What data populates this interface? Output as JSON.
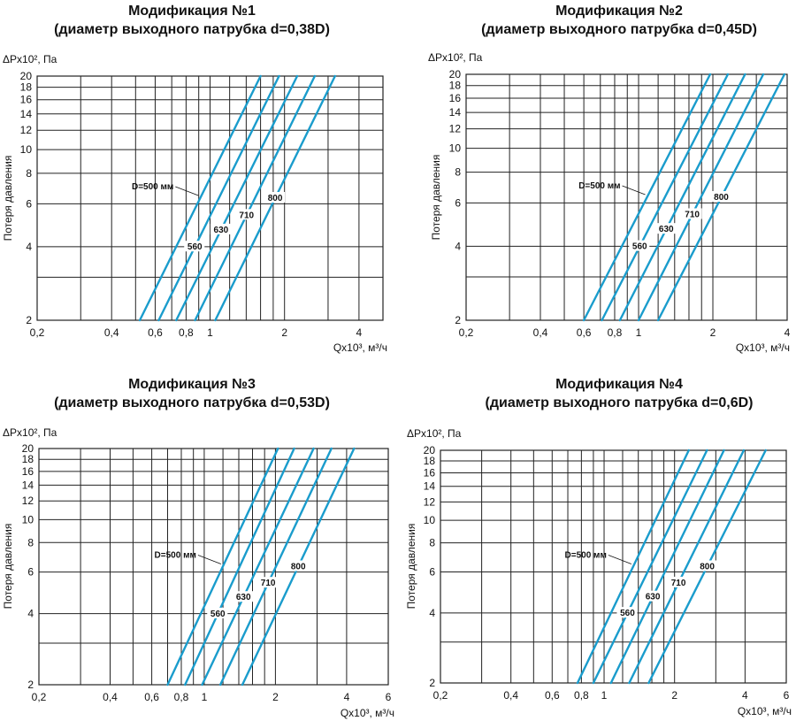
{
  "chart_data": [
    {
      "type": "line",
      "title": "Модификация №1",
      "subtitle": "(диаметр выходного патрубка d=0,38D)",
      "ylabel": "Потеря давления",
      "y_unit": "ΔPx10², Па",
      "x_unit": "Qx10³, м³/ч",
      "x_scale": "log",
      "y_scale": "log",
      "xlim": [
        0.2,
        5
      ],
      "ylim": [
        2,
        20
      ],
      "xticks": [
        0.2,
        0.4,
        0.6,
        0.8,
        1,
        2,
        4
      ],
      "xtick_labels": [
        "0,2",
        "0,4",
        "0,6",
        "0,8",
        "1",
        "2",
        "4"
      ],
      "yticks": [
        2,
        4,
        6,
        8,
        10,
        12,
        14,
        16,
        18,
        20
      ],
      "ytick_labels": [
        "2",
        "4",
        "6",
        "8",
        "10",
        "12",
        "14",
        "16",
        "18",
        "20"
      ],
      "series": [
        {
          "name": "D=500 мм",
          "x": [
            0.52,
            1.6
          ],
          "y": [
            2,
            20
          ]
        },
        {
          "name": "560",
          "x": [
            0.62,
            1.9
          ],
          "y": [
            2,
            20
          ]
        },
        {
          "name": "630",
          "x": [
            0.73,
            2.25
          ],
          "y": [
            2,
            20
          ]
        },
        {
          "name": "710",
          "x": [
            0.87,
            2.65
          ],
          "y": [
            2,
            20
          ]
        },
        {
          "name": "800",
          "x": [
            1.05,
            3.2
          ],
          "y": [
            2,
            20
          ]
        }
      ]
    },
    {
      "type": "line",
      "title": "Модификация №2",
      "subtitle": "(диаметр выходного патрубка d=0,45D)",
      "ylabel": "Потеря давления",
      "y_unit": "ΔPx10², Па",
      "x_unit": "Qx10³, м³/ч",
      "x_scale": "log",
      "y_scale": "log",
      "xlim": [
        0.2,
        4
      ],
      "ylim": [
        2,
        20
      ],
      "xticks": [
        0.2,
        0.4,
        0.6,
        0.8,
        1,
        2,
        4
      ],
      "xtick_labels": [
        "0,2",
        "0,4",
        "0,6",
        "0,8",
        "1",
        "2",
        "4"
      ],
      "yticks": [
        2,
        4,
        6,
        8,
        10,
        12,
        14,
        16,
        18,
        20
      ],
      "ytick_labels": [
        "2",
        "4",
        "6",
        "8",
        "10",
        "12",
        "14",
        "16",
        "18",
        "20"
      ],
      "series": [
        {
          "name": "D=500 мм",
          "x": [
            0.6,
            1.95
          ],
          "y": [
            2,
            20
          ]
        },
        {
          "name": "560",
          "x": [
            0.71,
            2.3
          ],
          "y": [
            2,
            20
          ]
        },
        {
          "name": "630",
          "x": [
            0.84,
            2.7
          ],
          "y": [
            2,
            20
          ]
        },
        {
          "name": "710",
          "x": [
            1.0,
            3.2
          ],
          "y": [
            2,
            20
          ]
        },
        {
          "name": "800",
          "x": [
            1.2,
            3.9
          ],
          "y": [
            2,
            20
          ]
        }
      ]
    },
    {
      "type": "line",
      "title": "Модификация №3",
      "subtitle": "(диаметр выходного патрубка d=0,53D)",
      "ylabel": "Потеря давления",
      "y_unit": "ΔPx10², Па",
      "x_unit": "Qx10³, м³/ч",
      "x_scale": "log",
      "y_scale": "log",
      "xlim": [
        0.2,
        6
      ],
      "ylim": [
        2,
        20
      ],
      "xticks": [
        0.2,
        0.4,
        0.6,
        0.8,
        1,
        2,
        4,
        6
      ],
      "xtick_labels": [
        "0,2",
        "0,4",
        "0,6",
        "0,8",
        "1",
        "2",
        "4",
        "6"
      ],
      "yticks": [
        2,
        4,
        6,
        8,
        10,
        12,
        14,
        16,
        18,
        20
      ],
      "ytick_labels": [
        "2",
        "4",
        "6",
        "8",
        "10",
        "12",
        "14",
        "16",
        "18",
        "20"
      ],
      "series": [
        {
          "name": "D=500 мм",
          "x": [
            0.7,
            2.05
          ],
          "y": [
            2,
            20
          ]
        },
        {
          "name": "560",
          "x": [
            0.83,
            2.4
          ],
          "y": [
            2,
            20
          ]
        },
        {
          "name": "630",
          "x": [
            0.98,
            2.9
          ],
          "y": [
            2,
            20
          ]
        },
        {
          "name": "710",
          "x": [
            1.17,
            3.45
          ],
          "y": [
            2,
            20
          ]
        },
        {
          "name": "800",
          "x": [
            1.45,
            4.3
          ],
          "y": [
            2,
            20
          ]
        }
      ]
    },
    {
      "type": "line",
      "title": "Модификация №4",
      "subtitle": "(диаметр выходного патрубка d=0,6D)",
      "ylabel": "Потеря давления",
      "y_unit": "ΔPx10², Па",
      "x_unit": "Qx10³, м³/ч",
      "x_scale": "log",
      "y_scale": "log",
      "xlim": [
        0.2,
        6
      ],
      "ylim": [
        2,
        20
      ],
      "xticks": [
        0.2,
        0.4,
        0.6,
        0.8,
        1,
        2,
        4,
        6
      ],
      "xtick_labels": [
        "0,2",
        "0,4",
        "0,6",
        "0,8",
        "1",
        "2",
        "4",
        "6"
      ],
      "yticks": [
        2,
        4,
        6,
        8,
        10,
        12,
        14,
        16,
        18,
        20
      ],
      "ytick_labels": [
        "2",
        "4",
        "6",
        "8",
        "10",
        "12",
        "14",
        "16",
        "18",
        "20"
      ],
      "series": [
        {
          "name": "D=500 мм",
          "x": [
            0.77,
            2.3
          ],
          "y": [
            2,
            20
          ]
        },
        {
          "name": "560",
          "x": [
            0.9,
            2.75
          ],
          "y": [
            2,
            20
          ]
        },
        {
          "name": "630",
          "x": [
            1.07,
            3.25
          ],
          "y": [
            2,
            20
          ]
        },
        {
          "name": "710",
          "x": [
            1.28,
            3.95
          ],
          "y": [
            2,
            20
          ]
        },
        {
          "name": "800",
          "x": [
            1.55,
            4.9
          ],
          "y": [
            2,
            20
          ]
        }
      ]
    }
  ]
}
